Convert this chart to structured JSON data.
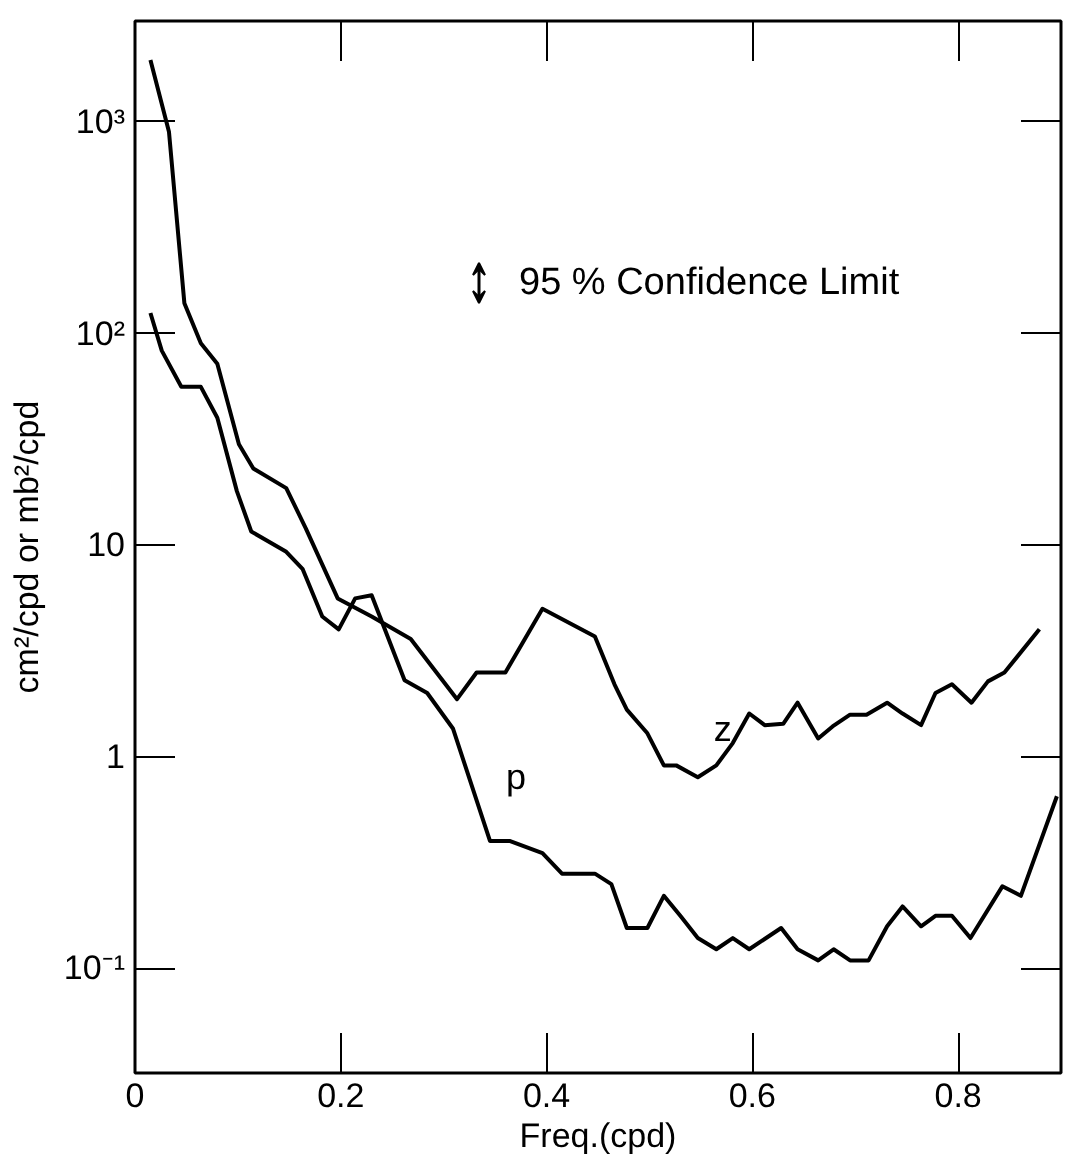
{
  "chart_data": {
    "type": "line",
    "xlabel": "Freq.(cpd)",
    "ylabel": "cm²/cpd or mb²/cpd",
    "annotations": [
      "95 % Confidence Limit"
    ],
    "log": "y",
    "grid": false,
    "legend": false,
    "marker": "none",
    "line_style": "solid",
    "xlim": [
      0,
      0.9
    ],
    "xticks": [
      0,
      0.2,
      0.4,
      0.6,
      0.8
    ],
    "ylim": [
      0.032,
      3000
    ],
    "yticks": [
      {
        "value": 0.1,
        "label": "10⁻¹"
      },
      1,
      10,
      {
        "value": 100,
        "label": "10²"
      },
      {
        "value": 1000,
        "label": "10³"
      }
    ],
    "series": [
      {
        "name": "z",
        "color": "#000000",
        "x": [
          0.015,
          0.033,
          0.048,
          0.064,
          0.08,
          0.101,
          0.115,
          0.147,
          0.166,
          0.197,
          0.23,
          0.268,
          0.313,
          0.332,
          0.36,
          0.396,
          0.447,
          0.466,
          0.478,
          0.498,
          0.514,
          0.526,
          0.547,
          0.565,
          0.581,
          0.597,
          0.612,
          0.63,
          0.644,
          0.664,
          0.678,
          0.695,
          0.711,
          0.731,
          0.746,
          0.764,
          0.778,
          0.794,
          0.813,
          0.829,
          0.845,
          0.879
        ],
        "values": [
          1960,
          900,
          139,
          90,
          72,
          30,
          23,
          18.6,
          12,
          5.6,
          4.6,
          3.6,
          1.87,
          2.5,
          2.5,
          5.0,
          3.7,
          2.2,
          1.67,
          1.29,
          0.91,
          0.91,
          0.8,
          0.91,
          1.16,
          1.6,
          1.41,
          1.43,
          1.8,
          1.22,
          1.39,
          1.58,
          1.58,
          1.8,
          1.6,
          1.41,
          2.0,
          2.2,
          1.8,
          2.27,
          2.5,
          4.0
        ]
      },
      {
        "name": "p",
        "color": "#000000",
        "x": [
          0.015,
          0.026,
          0.045,
          0.064,
          0.08,
          0.099,
          0.113,
          0.147,
          0.163,
          0.182,
          0.198,
          0.214,
          0.23,
          0.262,
          0.284,
          0.309,
          0.345,
          0.364,
          0.396,
          0.415,
          0.447,
          0.463,
          0.478,
          0.498,
          0.514,
          0.53,
          0.547,
          0.565,
          0.581,
          0.597,
          0.628,
          0.644,
          0.664,
          0.679,
          0.695,
          0.713,
          0.731,
          0.746,
          0.764,
          0.778,
          0.794,
          0.812,
          0.843,
          0.861,
          0.896
        ],
        "values": [
          125,
          83,
          56,
          56,
          40,
          18,
          11.6,
          9.3,
          7.7,
          4.6,
          4.0,
          5.6,
          5.8,
          2.3,
          2.0,
          1.36,
          0.4,
          0.4,
          0.35,
          0.28,
          0.28,
          0.25,
          0.155,
          0.155,
          0.22,
          0.177,
          0.139,
          0.123,
          0.139,
          0.123,
          0.155,
          0.123,
          0.109,
          0.123,
          0.109,
          0.109,
          0.158,
          0.196,
          0.158,
          0.177,
          0.177,
          0.139,
          0.244,
          0.22,
          0.65
        ]
      }
    ]
  }
}
